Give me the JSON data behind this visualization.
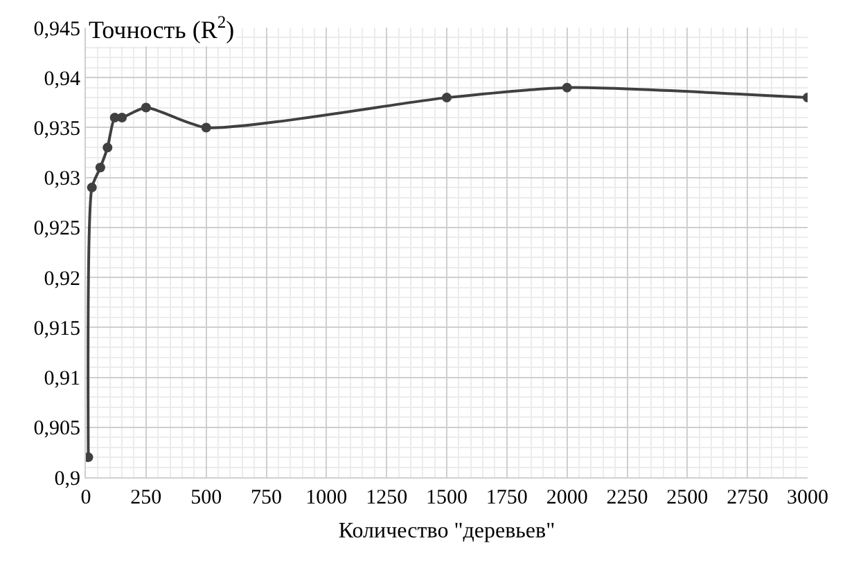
{
  "chart_data": {
    "type": "line",
    "ylabel": "Точность (R$^{2}$)",
    "xlabel": "Количество \"деревьев\"",
    "x": [
      10,
      25,
      60,
      90,
      120,
      150,
      250,
      500,
      1500,
      2000,
      3000
    ],
    "series": [
      {
        "color": "#404040",
        "values": [
          0.902,
          0.929,
          0.931,
          0.933,
          0.936,
          0.936,
          0.937,
          0.935,
          0.938,
          0.939,
          0.938
        ]
      }
    ],
    "xlim": [
      0,
      3000
    ],
    "xticks": [
      0,
      250,
      500,
      750,
      1000,
      1250,
      1500,
      1750,
      2000,
      2250,
      2500,
      2750,
      3000
    ],
    "ylim": [
      0.9,
      0.945
    ],
    "yticks": [
      {
        "value": 0.9,
        "label": "0,9"
      },
      {
        "value": 0.905,
        "label": "0,905"
      },
      {
        "value": 0.91,
        "label": "0,91"
      },
      {
        "value": 0.915,
        "label": "0,915"
      },
      {
        "value": 0.92,
        "label": "0,92"
      },
      {
        "value": 0.925,
        "label": "0,925"
      },
      {
        "value": 0.93,
        "label": "0,93"
      },
      {
        "value": 0.935,
        "label": "0,935"
      },
      {
        "value": 0.94,
        "label": "0,94"
      },
      {
        "value": 0.945,
        "label": "0,945"
      }
    ],
    "grid": true,
    "marker": "circle",
    "line_style": "solid"
  }
}
